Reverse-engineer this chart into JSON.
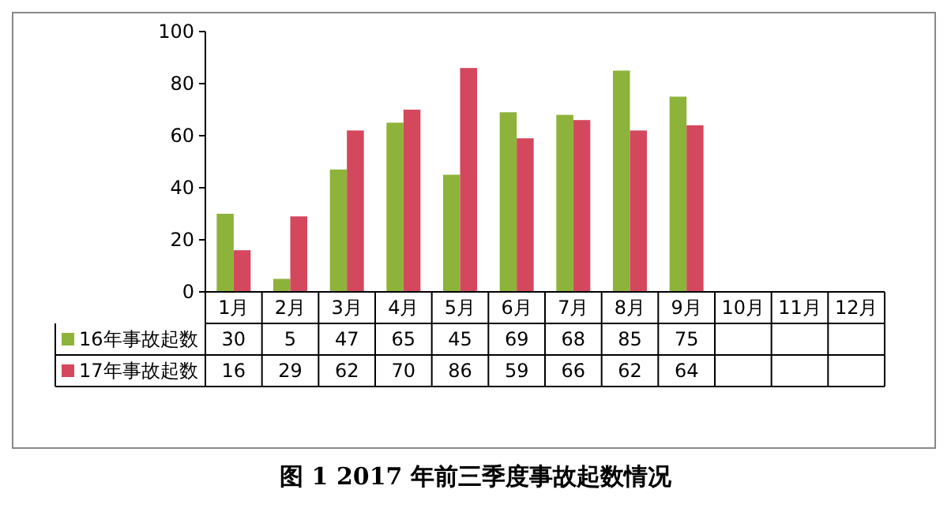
{
  "chart_data": {
    "type": "bar",
    "title": "图 1   2017 年前三季度事故起数情况",
    "categories": [
      "1月",
      "2月",
      "3月",
      "4月",
      "5月",
      "6月",
      "7月",
      "8月",
      "9月",
      "10月",
      "11月",
      "12月"
    ],
    "series": [
      {
        "name": "16年事故起数",
        "color": "#8db33a",
        "values": [
          30,
          5,
          47,
          65,
          45,
          69,
          68,
          85,
          75,
          null,
          null,
          null
        ]
      },
      {
        "name": "17年事故起数",
        "color": "#d4485e",
        "values": [
          16,
          29,
          62,
          70,
          86,
          59,
          66,
          62,
          64,
          null,
          null,
          null
        ]
      }
    ],
    "ylim": [
      0,
      100
    ],
    "yticks": [
      0,
      20,
      40,
      60,
      80,
      100
    ],
    "data_labels": true,
    "legend": "left",
    "grid": false
  }
}
